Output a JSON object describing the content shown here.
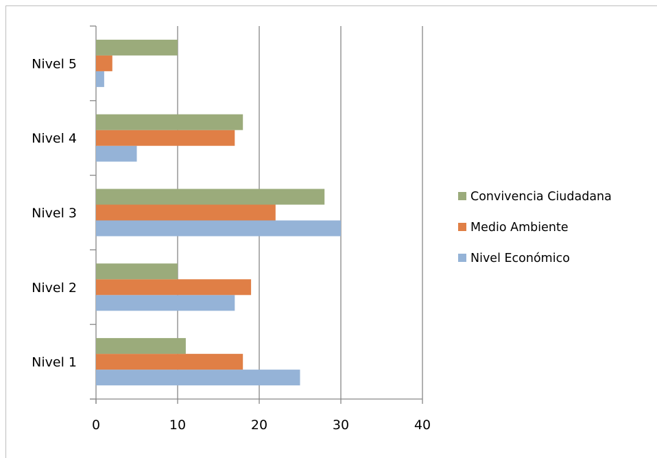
{
  "chart_data": {
    "type": "bar",
    "orientation": "horizontal",
    "title": "",
    "xlabel": "",
    "ylabel": "",
    "categories": [
      "Nivel 1",
      "Nivel 2",
      "Nivel 3",
      "Nivel 4",
      "Nivel 5"
    ],
    "x_ticks": [
      "0",
      "10",
      "20",
      "30",
      "40"
    ],
    "xlim": [
      0,
      40
    ],
    "grid": true,
    "legend_position": "right",
    "series": [
      {
        "name": "Nivel Económico",
        "color": "#95b3d7",
        "values": [
          25,
          17,
          30,
          5,
          1
        ]
      },
      {
        "name": "Medio Ambiente",
        "color": "#e07f46",
        "values": [
          18,
          19,
          22,
          17,
          2
        ]
      },
      {
        "name": "Convivencia Ciudadana",
        "color": "#9bab7b",
        "values": [
          11,
          10,
          28,
          18,
          10
        ]
      }
    ]
  }
}
